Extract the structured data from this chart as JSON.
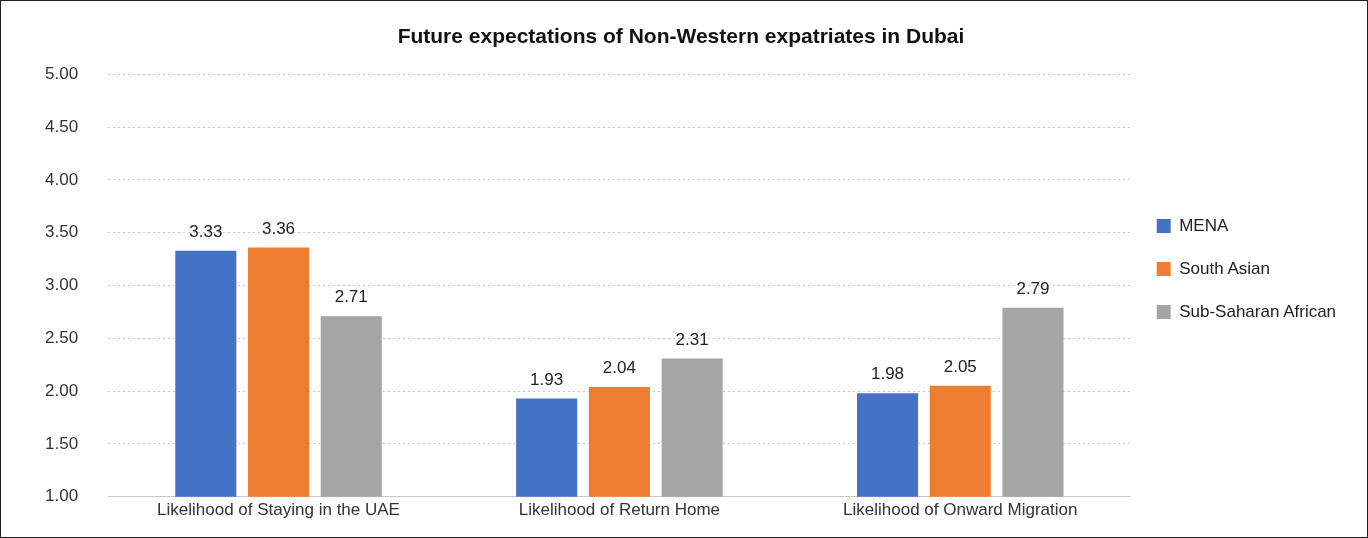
{
  "chart_data": {
    "type": "bar",
    "title": "Future expectations of Non-Western expatriates in Dubai",
    "categories": [
      "Likelihood of Staying in the UAE",
      "Likelihood of Return Home",
      "Likelihood of Onward Migration"
    ],
    "series": [
      {
        "name": "MENA",
        "color": "#4472c4",
        "values": [
          3.33,
          1.93,
          1.98
        ]
      },
      {
        "name": "South Asian",
        "color": "#ed7d31",
        "values": [
          3.36,
          2.04,
          2.05
        ]
      },
      {
        "name": "Sub-Saharan African",
        "color": "#a5a5a5",
        "values": [
          2.71,
          2.31,
          2.79
        ]
      }
    ],
    "ylim": [
      1,
      5
    ],
    "yticks": [
      {
        "value": 1,
        "label": "1.00"
      },
      {
        "value": 1.5,
        "label": "1.50"
      },
      {
        "value": 2,
        "label": "2.00"
      },
      {
        "value": 2.5,
        "label": "2.50"
      },
      {
        "value": 3,
        "label": "3.00"
      },
      {
        "value": 3.5,
        "label": "3.50"
      },
      {
        "value": 4,
        "label": "4.00"
      },
      {
        "value": 4.5,
        "label": "4.50"
      },
      {
        "value": 5,
        "label": "5.00"
      }
    ],
    "grid": "y",
    "legend": "right",
    "data_labels": true
  }
}
